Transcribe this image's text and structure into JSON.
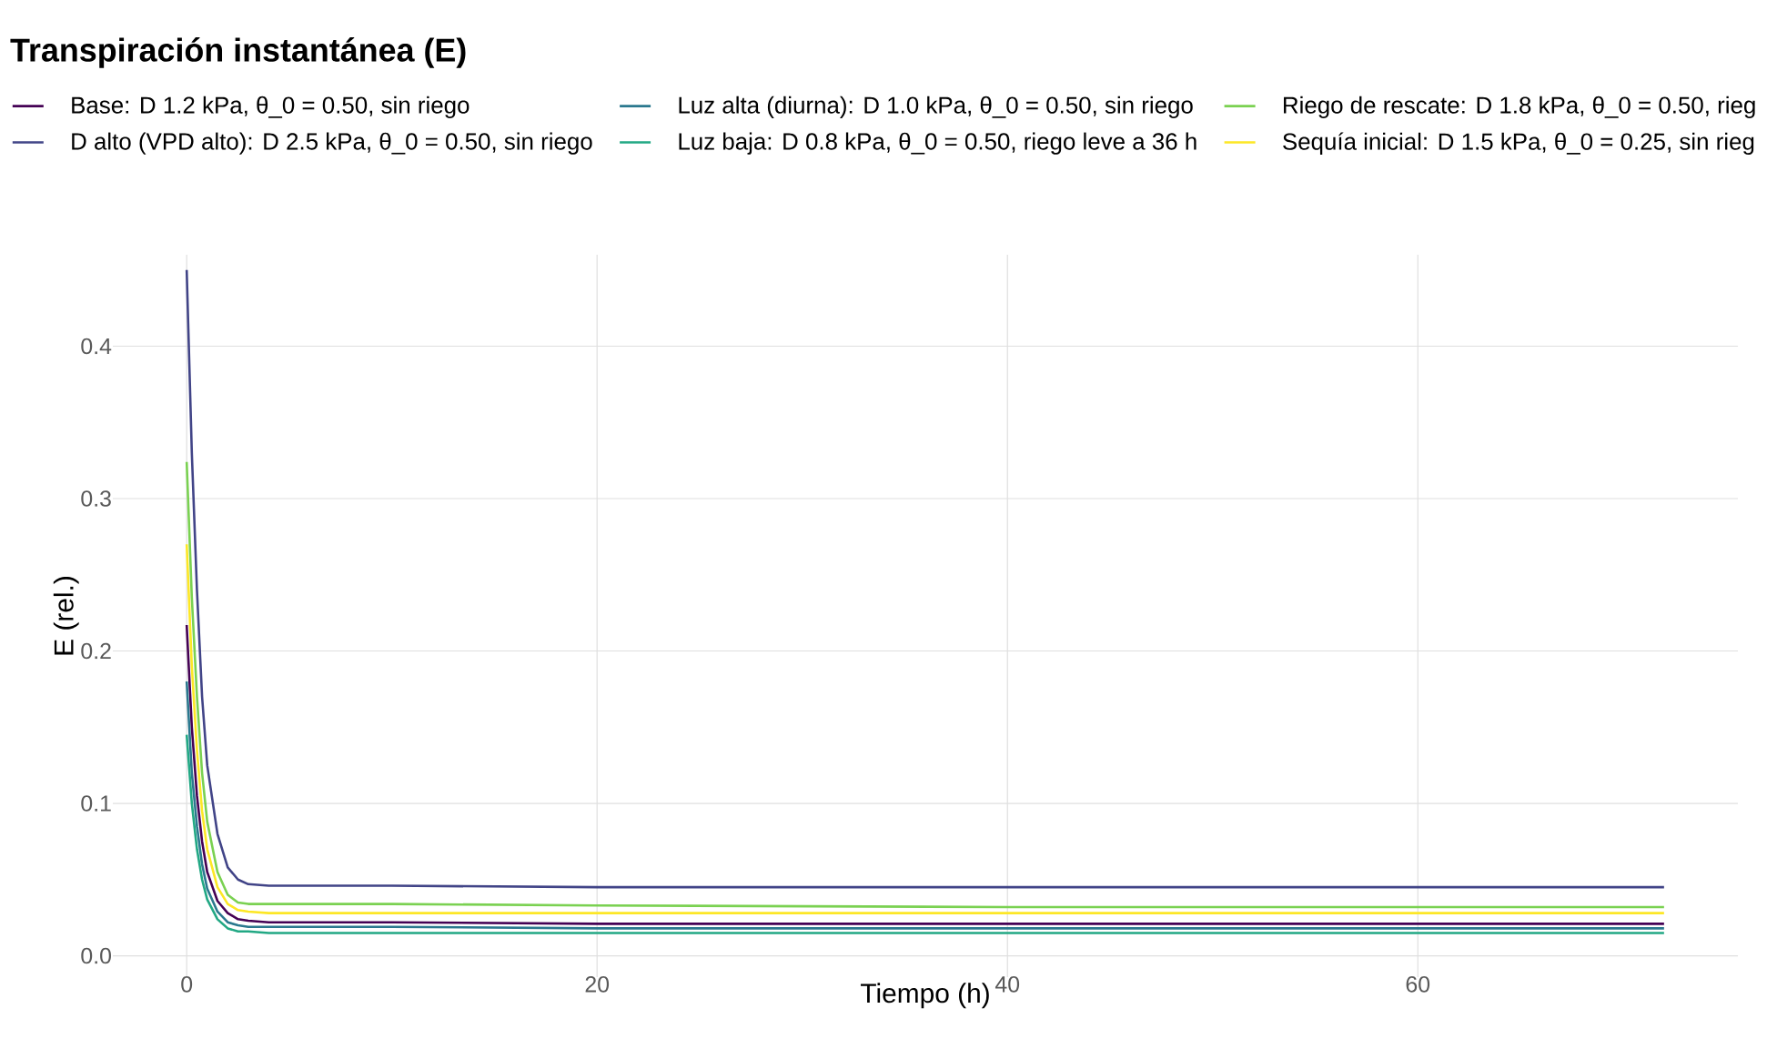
{
  "chart_data": {
    "type": "line",
    "title": "Transpiración instantánea (E)",
    "xlabel": "Tiempo (h)",
    "ylabel": "E (rel.)",
    "x": [
      0,
      0.25,
      0.5,
      0.75,
      1,
      1.5,
      2,
      2.5,
      3,
      4,
      6,
      10,
      20,
      40,
      72
    ],
    "series": [
      {
        "name": "Base: D 1.2 kPa, θ_0 = 0.50, sin riego",
        "color": "#440154",
        "values": [
          0.217,
          0.15,
          0.105,
          0.075,
          0.055,
          0.036,
          0.028,
          0.024,
          0.023,
          0.022,
          0.022,
          0.022,
          0.021,
          0.021,
          0.021
        ]
      },
      {
        "name": "D alto (VPD alto): D 2.5 kPa, θ_0 = 0.50, sin riego",
        "color": "#414487",
        "values": [
          0.45,
          0.33,
          0.24,
          0.17,
          0.125,
          0.08,
          0.058,
          0.05,
          0.047,
          0.046,
          0.046,
          0.046,
          0.045,
          0.045,
          0.045
        ]
      },
      {
        "name": "Luz alta (diurna): D 1.0 kPa, θ_0 = 0.50, sin riego",
        "color": "#2a788e",
        "values": [
          0.18,
          0.12,
          0.085,
          0.06,
          0.044,
          0.029,
          0.022,
          0.02,
          0.019,
          0.019,
          0.019,
          0.019,
          0.018,
          0.018,
          0.018
        ]
      },
      {
        "name": "Luz baja: D 0.8 kPa, θ_0 = 0.50, riego leve a 36 h",
        "color": "#22a884",
        "values": [
          0.145,
          0.1,
          0.07,
          0.05,
          0.037,
          0.024,
          0.018,
          0.016,
          0.016,
          0.015,
          0.015,
          0.015,
          0.015,
          0.015,
          0.015
        ]
      },
      {
        "name": "Riego de rescate: D 1.8 kPa, θ_0 = 0.50, rieg",
        "color": "#7ad151",
        "values": [
          0.324,
          0.235,
          0.17,
          0.12,
          0.088,
          0.055,
          0.04,
          0.035,
          0.034,
          0.034,
          0.034,
          0.034,
          0.033,
          0.032,
          0.032
        ]
      },
      {
        "name": "Sequía inicial: D 1.5 kPa, θ_0 = 0.25, sin rieg",
        "color": "#fde725",
        "values": [
          0.27,
          0.19,
          0.135,
          0.095,
          0.07,
          0.045,
          0.034,
          0.03,
          0.029,
          0.028,
          0.028,
          0.028,
          0.028,
          0.028,
          0.028
        ]
      }
    ],
    "xlim": [
      -3.6,
      75.6
    ],
    "ylim": [
      -0.014,
      0.46
    ],
    "xticks": [
      0,
      20,
      40,
      60
    ],
    "yticks": [
      {
        "value": 0,
        "label": "0.0"
      },
      0.1,
      0.2,
      0.3,
      0.4
    ],
    "grid": true,
    "legend": "top",
    "marker": "none",
    "line_style": "solid"
  }
}
